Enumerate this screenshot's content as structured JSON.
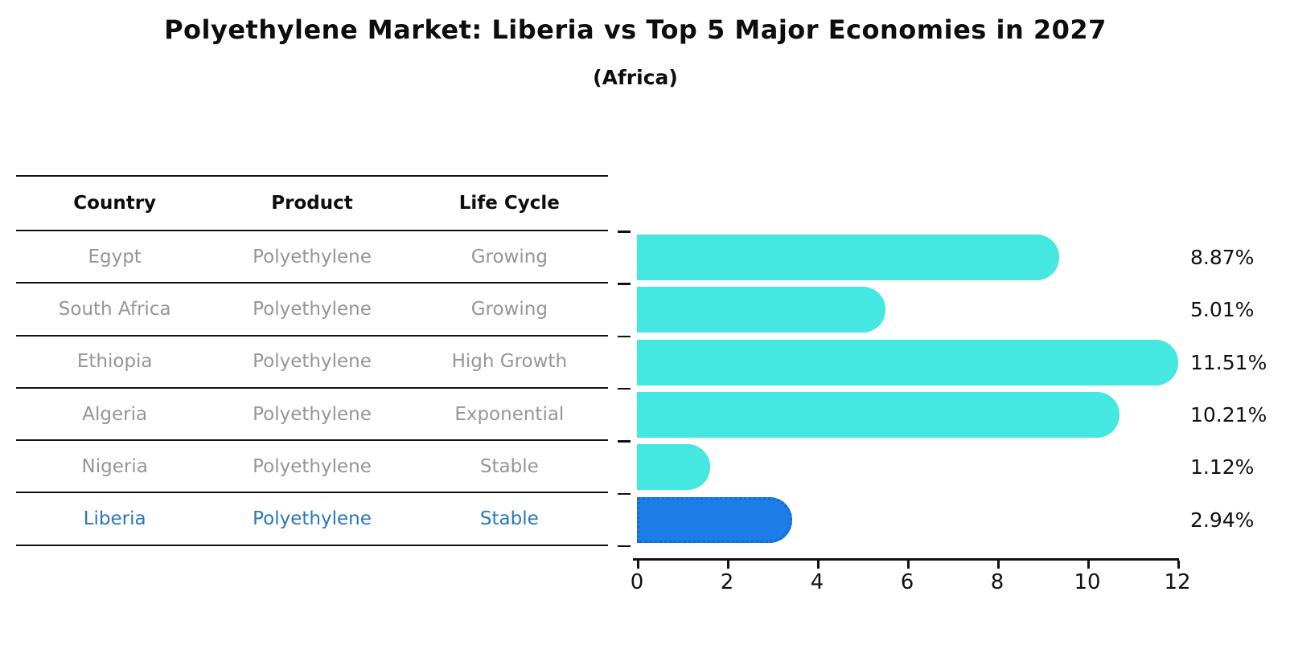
{
  "header": {
    "title": "Polyethylene Market: Liberia vs Top 5 Major Economies in 2027",
    "subtitle": "(Africa)"
  },
  "table": {
    "columns": [
      "Country",
      "Product",
      "Life Cycle"
    ],
    "rows": [
      {
        "country": "Egypt",
        "product": "Polyethylene",
        "life_cycle": "Growing",
        "highlight": false
      },
      {
        "country": "South Africa",
        "product": "Polyethylene",
        "life_cycle": "Growing",
        "highlight": false
      },
      {
        "country": "Ethiopia",
        "product": "Polyethylene",
        "life_cycle": "High Growth",
        "highlight": false
      },
      {
        "country": "Algeria",
        "product": "Polyethylene",
        "life_cycle": "Exponential",
        "highlight": false
      },
      {
        "country": "Nigeria",
        "product": "Polyethylene",
        "life_cycle": "Stable",
        "highlight": false
      },
      {
        "country": "Liberia",
        "product": "Polyethylene",
        "life_cycle": "Stable",
        "highlight": true
      }
    ]
  },
  "chart_data": {
    "type": "bar",
    "orientation": "horizontal",
    "title": "Polyethylene Market: Liberia vs Top 5 Major Economies in 2027",
    "subtitle": "(Africa)",
    "categories": [
      "Egypt",
      "South Africa",
      "Ethiopia",
      "Algeria",
      "Nigeria",
      "Liberia"
    ],
    "values": [
      8.87,
      5.01,
      11.51,
      10.21,
      1.12,
      2.94
    ],
    "value_labels": [
      "8.87%",
      "5.01%",
      "11.51%",
      "10.21%",
      "1.12%",
      "2.94%"
    ],
    "xlim": [
      0,
      12
    ],
    "xticks": [
      0,
      2,
      4,
      6,
      8,
      10,
      12
    ],
    "grid": false,
    "legend": false,
    "highlight_category": "Liberia",
    "bar_color": "#45E7E1",
    "highlight_bar_color": "#1C7CE8",
    "highlight_text_color": "#2878BE"
  }
}
